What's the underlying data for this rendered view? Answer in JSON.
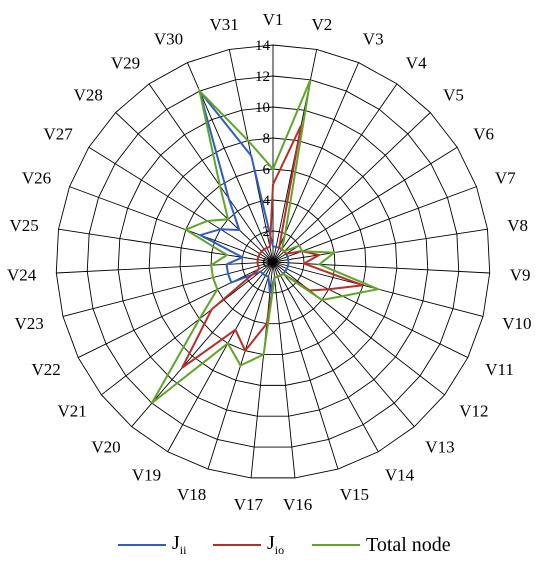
{
  "chart_data": {
    "type": "radar",
    "categories": [
      "V1",
      "V2",
      "V3",
      "V4",
      "V5",
      "V6",
      "V7",
      "V8",
      "V9",
      "V10",
      "V11",
      "V12",
      "V13",
      "V14",
      "V15",
      "V16",
      "V17",
      "V18",
      "V19",
      "V20",
      "V21",
      "V22",
      "V23",
      "V24",
      "V25",
      "V26",
      "V27",
      "V28",
      "V29",
      "V30",
      "V31"
    ],
    "rlim": [
      0,
      14
    ],
    "ticks": [
      "0",
      "2",
      "4",
      "6",
      "8",
      "10",
      "12",
      "14"
    ],
    "grid": true,
    "legend_position": "bottom",
    "series": [
      {
        "name_main": "J",
        "name_sub": "ii",
        "color": "#2e5fbe",
        "values": [
          1,
          1,
          1,
          1,
          1,
          1,
          1,
          1,
          1,
          1,
          1,
          1,
          1,
          1,
          1,
          1,
          2,
          1,
          1,
          1,
          1,
          3,
          3,
          3,
          2,
          5,
          4,
          3,
          5,
          12,
          7
        ]
      },
      {
        "name_main": "J",
        "name_sub": "io",
        "color": "#b5302a",
        "values": [
          5,
          9,
          1,
          1,
          1,
          1,
          2,
          3,
          2,
          6,
          4,
          3,
          1,
          1,
          1,
          1,
          4,
          6,
          5,
          9,
          5,
          1,
          1,
          1,
          1,
          1,
          1,
          1,
          1,
          1,
          1
        ]
      },
      {
        "name_main": "Total node",
        "name_sub": "",
        "color": "#5fa52a",
        "values": [
          6,
          12,
          2,
          1,
          1,
          2,
          2,
          4,
          3,
          7,
          5,
          4,
          1,
          1,
          1,
          1,
          6,
          7,
          6,
          12,
          6,
          4,
          4,
          4,
          3,
          6,
          5,
          4,
          6,
          12,
          8
        ]
      }
    ]
  }
}
